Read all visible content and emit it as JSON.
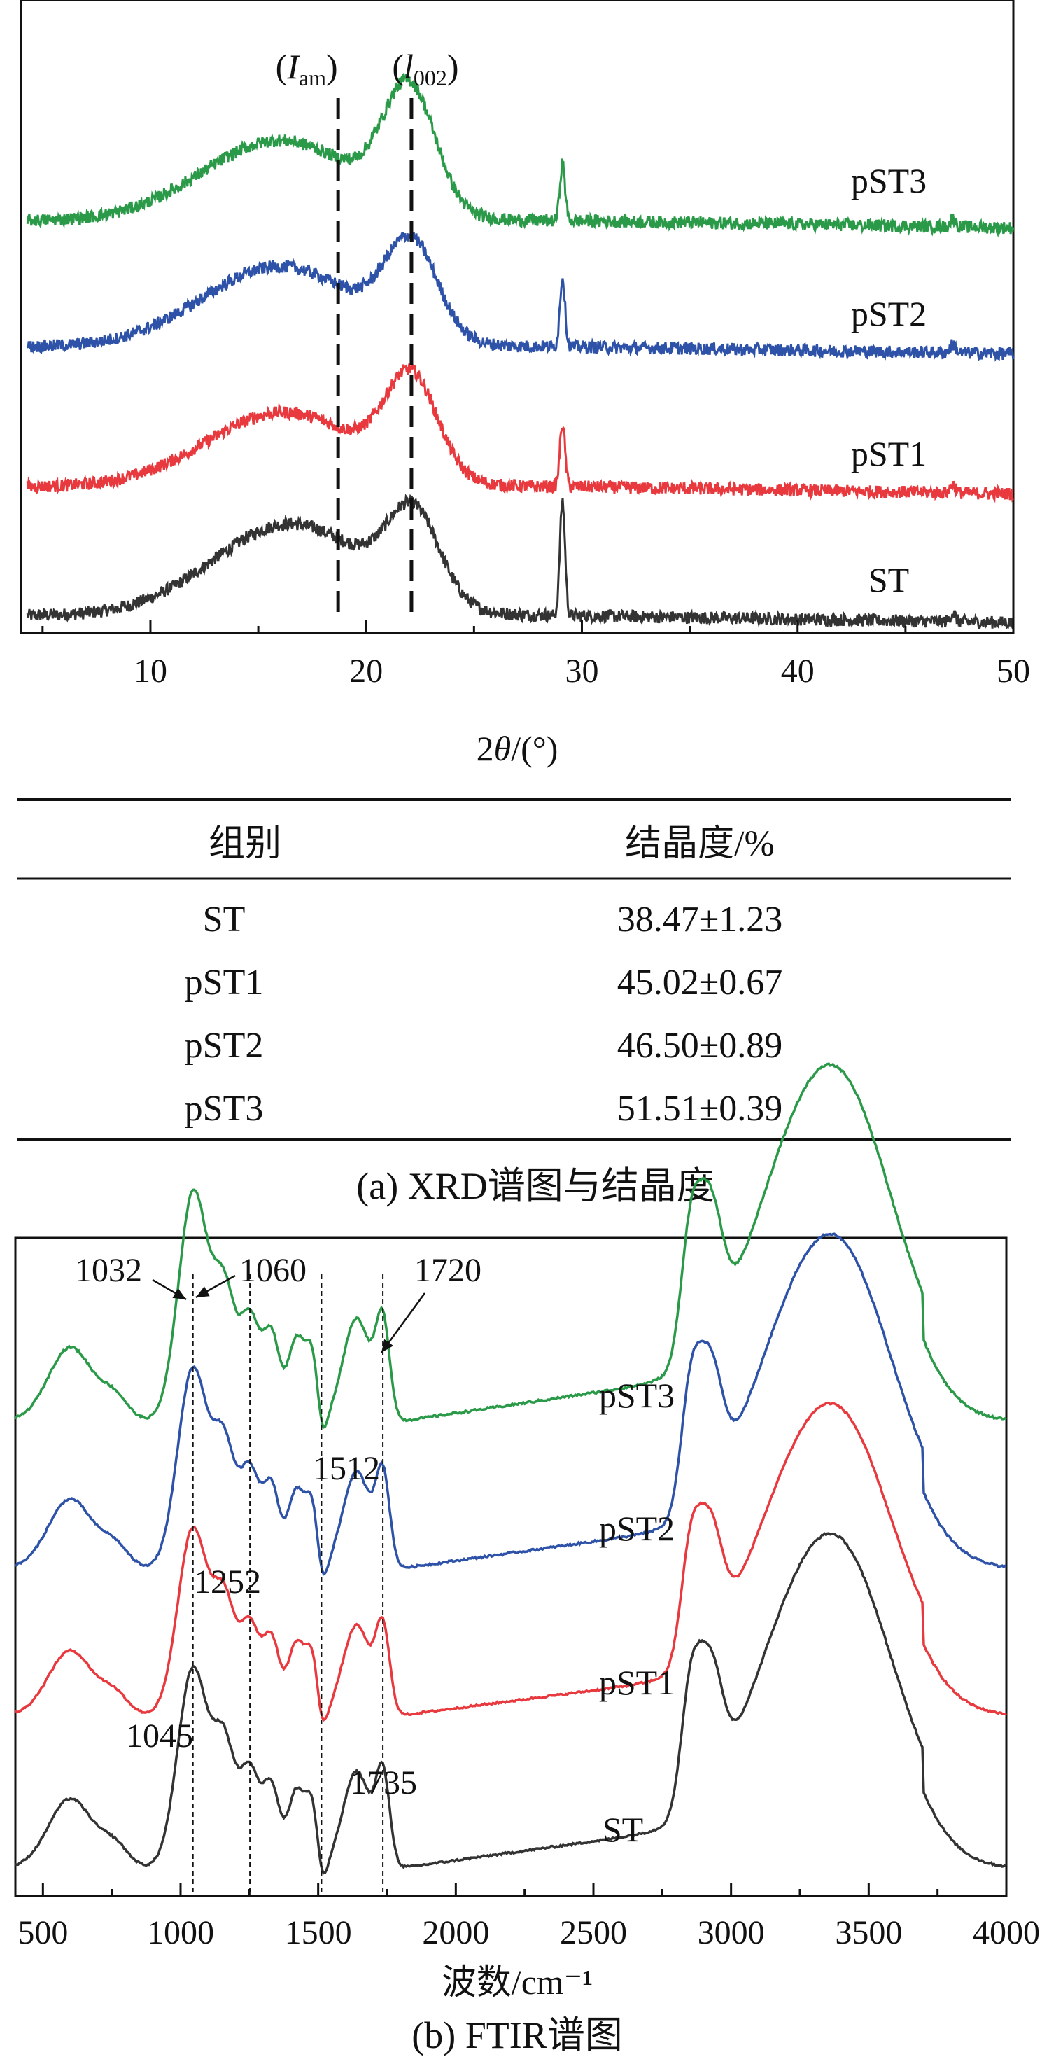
{
  "panel_a": {
    "chart_data": {
      "type": "line",
      "title": "",
      "xlabel_prefix": "2",
      "xlabel_theta": "θ",
      "xlabel_suffix": "/(°)",
      "ylabel": "",
      "xlim": [
        4,
        50
      ],
      "xticks": [
        10,
        20,
        30,
        40,
        50
      ],
      "yticks_shown": false,
      "grid": false,
      "series": [
        {
          "name": "ST",
          "color": "#333333",
          "baseline": 0.03,
          "broad_height": 0.16,
          "broad_center": 16.5,
          "broad_width": 3.6,
          "peak_height": 0.15,
          "peak_center": 22.2,
          "peak_width": 1.2,
          "sharp_height": 0.2,
          "sharp_center": 29.1
        },
        {
          "name": "pST1",
          "color": "#e8393e",
          "baseline": 0.03,
          "broad_height": 0.13,
          "broad_center": 16.2,
          "broad_width": 3.6,
          "peak_height": 0.17,
          "peak_center": 22.1,
          "peak_width": 1.2,
          "sharp_height": 0.11,
          "sharp_center": 29.1
        },
        {
          "name": "pST2",
          "color": "#2d52a8",
          "baseline": 0.03,
          "broad_height": 0.14,
          "broad_center": 16.0,
          "broad_width": 3.6,
          "peak_height": 0.16,
          "peak_center": 22.1,
          "peak_width": 1.2,
          "sharp_height": 0.12,
          "sharp_center": 29.1
        },
        {
          "name": "pST3",
          "color": "#2a9a48",
          "baseline": 0.03,
          "broad_height": 0.14,
          "broad_center": 16.0,
          "broad_width": 3.6,
          "peak_height": 0.21,
          "peak_center": 22.0,
          "peak_width": 1.2,
          "sharp_height": 0.1,
          "sharp_center": 29.1
        }
      ],
      "vlines": [
        {
          "x": 18.7,
          "label_main": "I",
          "label_sub": "am",
          "label_italic": true
        },
        {
          "x": 22.1,
          "label_main": "l",
          "label_sub": "002",
          "label_italic": true
        }
      ]
    }
  },
  "table": {
    "headers": [
      "组别",
      "结晶度/%"
    ],
    "rows": [
      [
        "ST",
        "38.47±1.23"
      ],
      [
        "pST1",
        "45.02±0.67"
      ],
      [
        "pST2",
        "46.50±0.89"
      ],
      [
        "pST3",
        "51.51±0.39"
      ]
    ]
  },
  "caption_a": "(a) XRD谱图与结晶度",
  "panel_b": {
    "chart_data": {
      "type": "line",
      "title": "",
      "xlabel": "波数/cm⁻¹",
      "ylabel": "",
      "xlim": [
        400,
        4000
      ],
      "xticks": [
        500,
        1000,
        1500,
        2000,
        2500,
        3000,
        3500,
        4000
      ],
      "yticks_shown": false,
      "grid": false,
      "series": [
        {
          "name": "ST",
          "color": "#333333"
        },
        {
          "name": "pST1",
          "color": "#e8393e"
        },
        {
          "name": "pST2",
          "color": "#2d52a8"
        },
        {
          "name": "pST3",
          "color": "#2a9a48"
        }
      ],
      "vlines": [
        1045,
        1252,
        1512,
        1735
      ],
      "peak_labels": [
        "1032",
        "1060",
        "1720",
        "1512",
        "1252",
        "1045",
        "1735"
      ]
    }
  },
  "caption_b": "(b) FTIR谱图"
}
